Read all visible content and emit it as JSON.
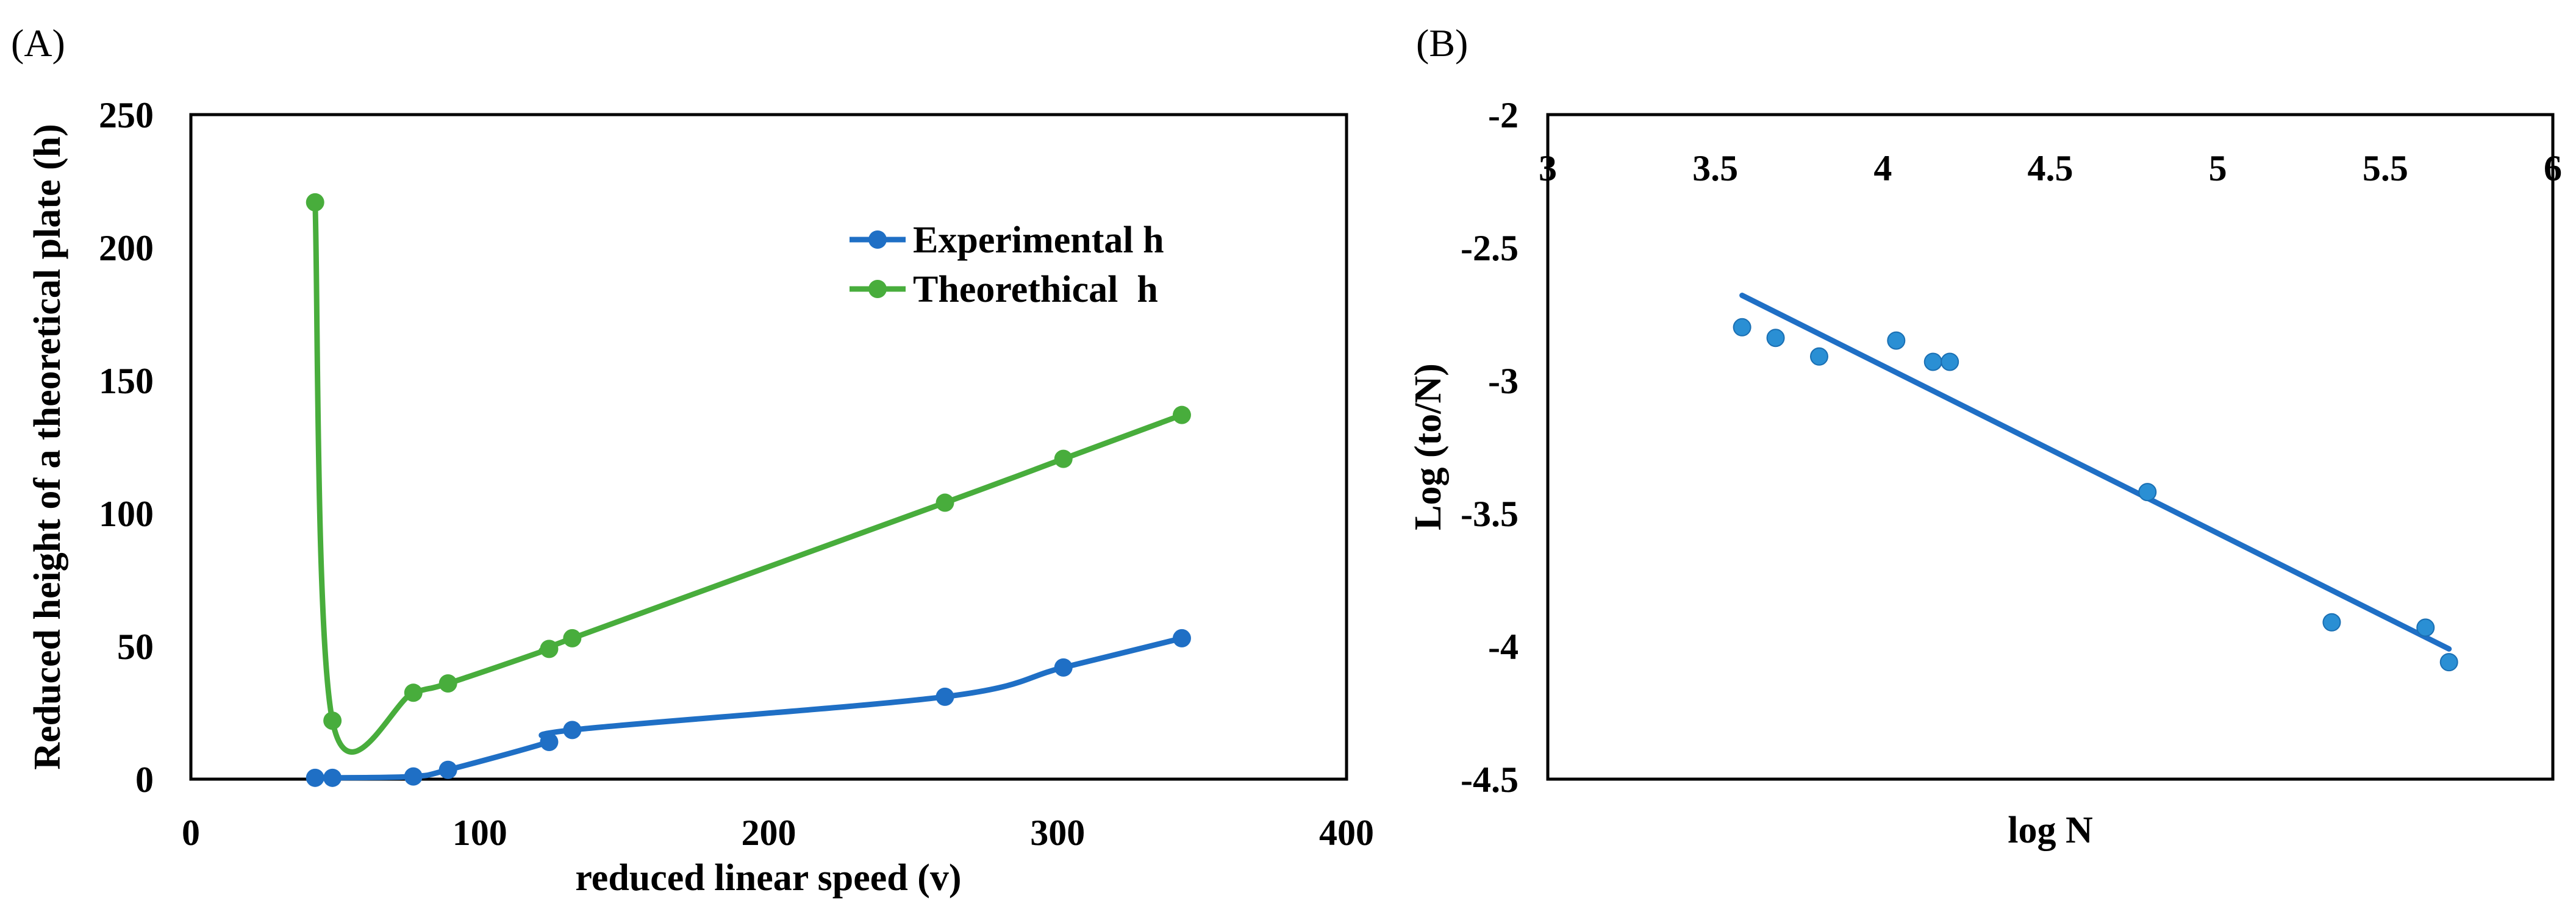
{
  "chart_data": [
    {
      "panel_label": "(A)",
      "type": "line",
      "xlabel": "reduced linear speed (v)",
      "ylabel": "Reduced height of a theoretical plate (h)",
      "xlim": [
        0,
        400
      ],
      "ylim": [
        0,
        250
      ],
      "xticks": [
        0,
        100,
        200,
        300,
        400
      ],
      "yticks": [
        0,
        50,
        100,
        150,
        200,
        250
      ],
      "grid": false,
      "legend_position": "top-right",
      "series": [
        {
          "name": "Experimental h",
          "color": "#1f6fc5",
          "x": [
            43,
            49,
            77,
            89,
            124,
            132,
            261,
            302,
            343
          ],
          "y": [
            0.5,
            0.5,
            1,
            3.5,
            14,
            18.5,
            31,
            42,
            53
          ]
        },
        {
          "name": "Theorethical  h",
          "color": "#48ad3c",
          "x": [
            43,
            49,
            77,
            89,
            124,
            132,
            261,
            302,
            343
          ],
          "y": [
            217,
            22,
            32.5,
            36,
            49,
            53,
            104,
            120.5,
            137
          ]
        }
      ]
    },
    {
      "panel_label": "(B)",
      "type": "scatter",
      "xlabel": "log N",
      "ylabel": "Log (to/N)",
      "xlim": [
        3,
        6
      ],
      "ylim": [
        -4.5,
        -2
      ],
      "xticks": [
        "3",
        "3.5",
        "4",
        "4.5",
        "5",
        "5.5",
        "6"
      ],
      "yticks": [
        "-2",
        "-2.5",
        "-3",
        "-3.5",
        "-4",
        "-4.5"
      ],
      "xaxis_position": "top",
      "grid": false,
      "series": [
        {
          "name": "data",
          "color": "#2a8fd4",
          "x": [
            3.58,
            3.68,
            3.81,
            4.04,
            4.15,
            4.2,
            4.79,
            5.34,
            5.62,
            5.69
          ],
          "y": [
            -2.8,
            -2.84,
            -2.91,
            -2.85,
            -2.93,
            -2.93,
            -3.42,
            -3.91,
            -3.93,
            -4.06
          ]
        }
      ],
      "trendline": {
        "color": "#1f6fc5",
        "x": [
          3.58,
          5.69
        ],
        "y": [
          -2.68,
          -4.01
        ]
      }
    }
  ]
}
